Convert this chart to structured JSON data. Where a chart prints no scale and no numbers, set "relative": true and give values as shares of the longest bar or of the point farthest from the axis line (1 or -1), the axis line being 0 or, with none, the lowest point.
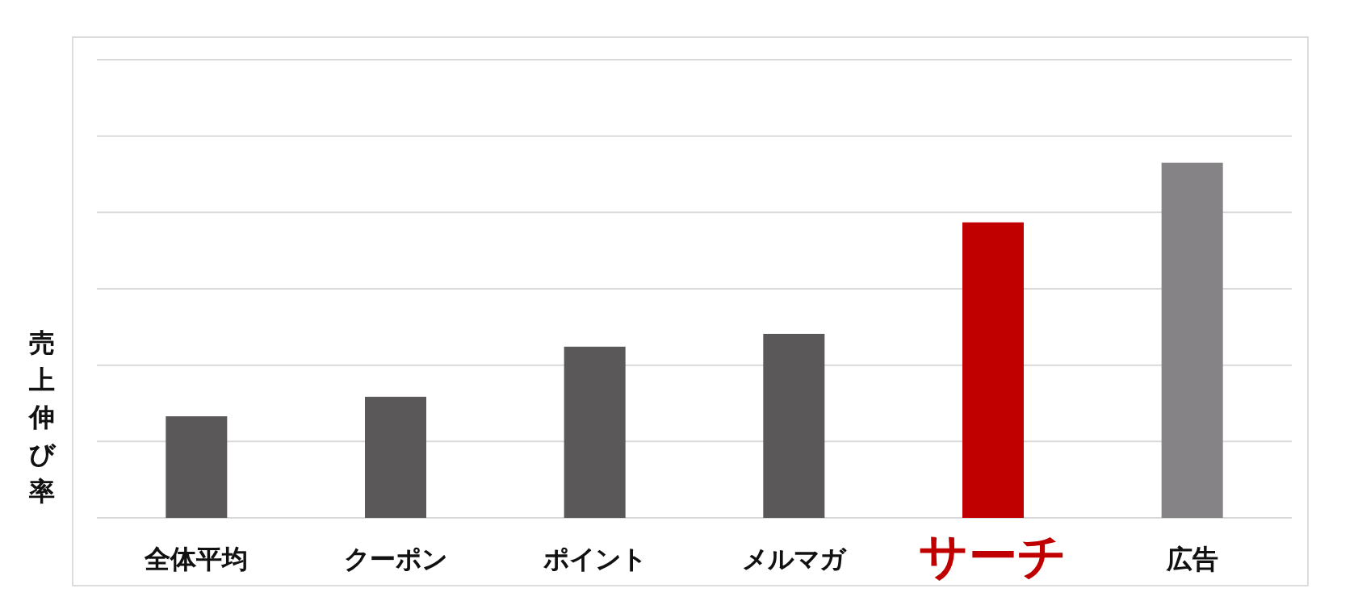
{
  "chart_data": {
    "type": "bar",
    "relative": true,
    "ylabel": "売上伸び率",
    "grid": "y",
    "categories": [
      "全体平均",
      "クーポン",
      "ポイント",
      "メルマガ",
      "サーチ",
      "広告"
    ],
    "values": [
      0.286,
      0.341,
      0.482,
      0.518,
      0.832,
      1
    ],
    "colors": [
      "#5a5859",
      "#5a5859",
      "#5a5859",
      "#5a5859",
      "#c00000",
      "#858385"
    ]
  }
}
